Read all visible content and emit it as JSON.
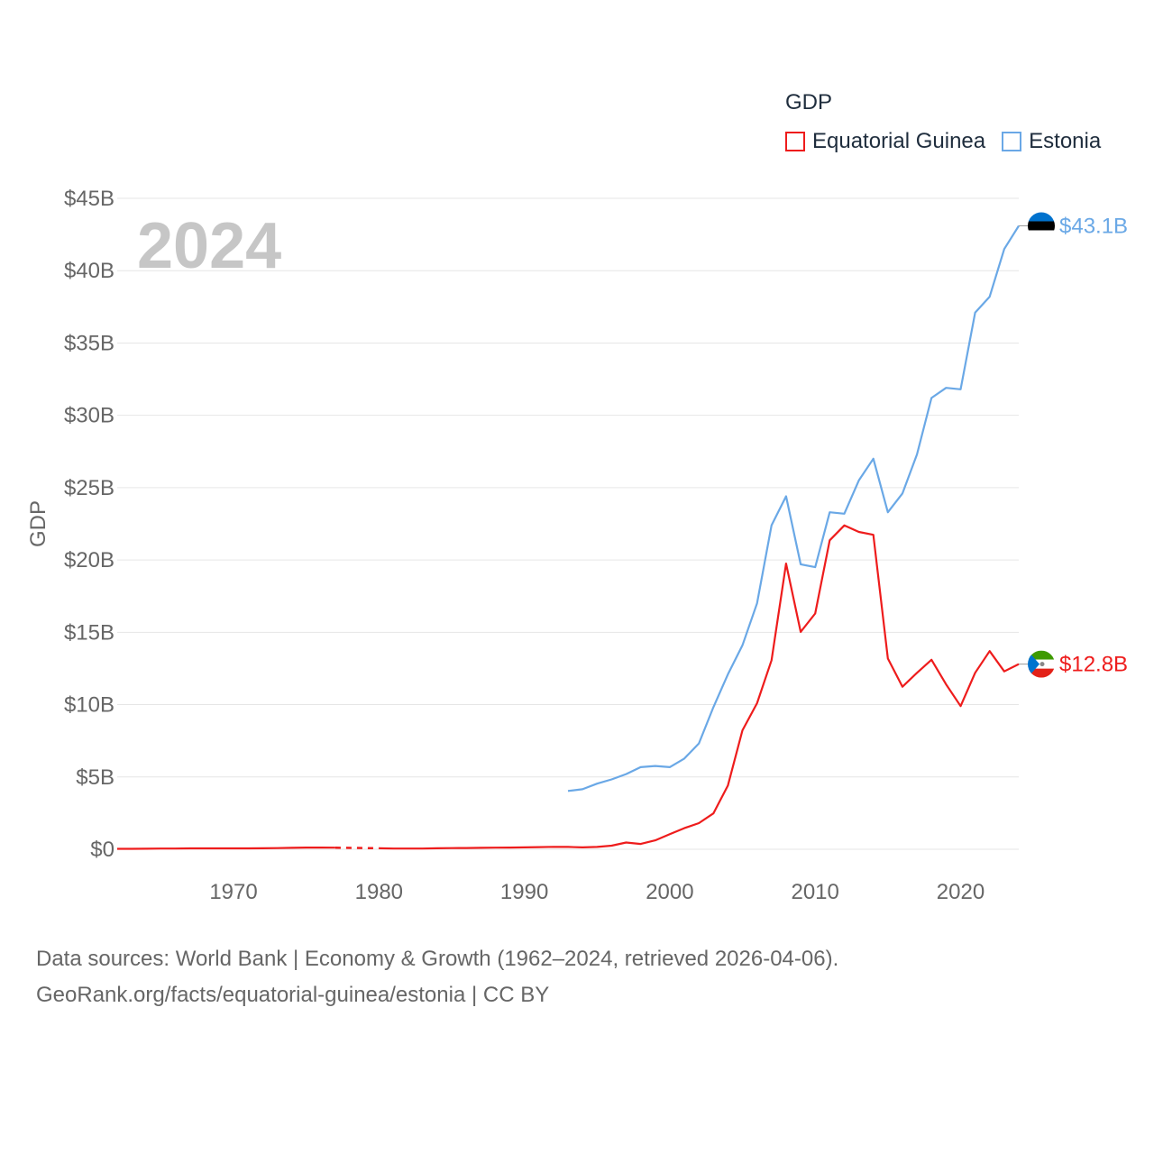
{
  "legend": {
    "title": "GDP",
    "items": [
      {
        "label": "Equatorial Guinea",
        "color": "#ee1c1c"
      },
      {
        "label": "Estonia",
        "color": "#6aa8e6"
      }
    ]
  },
  "year_label": "2024",
  "end_labels": {
    "estonia": "$43.1B",
    "equatorial_guinea": "$12.8B"
  },
  "footer": {
    "line1": "Data sources: World Bank | Economy & Growth (1962–2024, retrieved 2026-04-06).",
    "line2": "GeoRank.org/facts/equatorial-guinea/estonia | CC BY"
  },
  "chart_data": {
    "type": "line",
    "title": "",
    "xlabel": "",
    "ylabel": "GDP",
    "xlim": [
      1962,
      2024
    ],
    "ylim": [
      0,
      45
    ],
    "y_unit": "billion USD",
    "yticks": [
      0,
      5,
      10,
      15,
      20,
      25,
      30,
      35,
      40,
      45
    ],
    "ytick_labels": [
      "$0",
      "$5B",
      "$10B",
      "$15B",
      "$20B",
      "$25B",
      "$30B",
      "$35B",
      "$40B",
      "$45B"
    ],
    "xticks": [
      1970,
      1980,
      1990,
      2000,
      2010,
      2020
    ],
    "xtick_labels": [
      "1970",
      "1980",
      "1990",
      "2000",
      "2010",
      "2020"
    ],
    "grid": true,
    "legend_position": "top-right",
    "series": [
      {
        "name": "Equatorial Guinea",
        "color": "#ee1c1c",
        "gap": [
          1977,
          1980
        ],
        "x": [
          1962,
          1963,
          1964,
          1965,
          1966,
          1967,
          1968,
          1969,
          1970,
          1971,
          1972,
          1973,
          1974,
          1975,
          1976,
          1977,
          1980,
          1981,
          1982,
          1983,
          1984,
          1985,
          1986,
          1987,
          1988,
          1989,
          1990,
          1991,
          1992,
          1993,
          1994,
          1995,
          1996,
          1997,
          1998,
          1999,
          2000,
          2001,
          2002,
          2003,
          2004,
          2005,
          2006,
          2007,
          2008,
          2009,
          2010,
          2011,
          2012,
          2013,
          2014,
          2015,
          2016,
          2017,
          2018,
          2019,
          2020,
          2021,
          2022,
          2023,
          2024
        ],
        "values": [
          0.03,
          0.03,
          0.04,
          0.05,
          0.05,
          0.06,
          0.06,
          0.06,
          0.06,
          0.06,
          0.07,
          0.08,
          0.1,
          0.12,
          0.12,
          0.11,
          0.07,
          0.05,
          0.05,
          0.05,
          0.07,
          0.08,
          0.09,
          0.1,
          0.11,
          0.12,
          0.13,
          0.15,
          0.17,
          0.16,
          0.13,
          0.16,
          0.25,
          0.47,
          0.37,
          0.62,
          1.05,
          1.46,
          1.81,
          2.48,
          4.41,
          8.22,
          10.1,
          13.07,
          19.75,
          15.03,
          16.3,
          21.36,
          22.39,
          21.94,
          21.74,
          13.19,
          11.24,
          12.2,
          13.1,
          11.4,
          9.9,
          12.2,
          13.7,
          12.3,
          12.8
        ]
      },
      {
        "name": "Estonia",
        "color": "#6aa8e6",
        "x": [
          1993,
          1994,
          1995,
          1996,
          1997,
          1998,
          1999,
          2000,
          2001,
          2002,
          2003,
          2004,
          2005,
          2006,
          2007,
          2008,
          2009,
          2010,
          2011,
          2012,
          2013,
          2014,
          2015,
          2016,
          2017,
          2018,
          2019,
          2020,
          2021,
          2022,
          2023,
          2024
        ],
        "values": [
          4.03,
          4.15,
          4.54,
          4.83,
          5.2,
          5.68,
          5.76,
          5.68,
          6.27,
          7.32,
          9.82,
          12.1,
          14.1,
          17.0,
          22.4,
          24.4,
          19.7,
          19.5,
          23.3,
          23.2,
          25.5,
          27.0,
          23.3,
          24.6,
          27.3,
          31.2,
          31.9,
          31.8,
          37.1,
          38.2,
          41.5,
          43.1
        ]
      }
    ]
  }
}
